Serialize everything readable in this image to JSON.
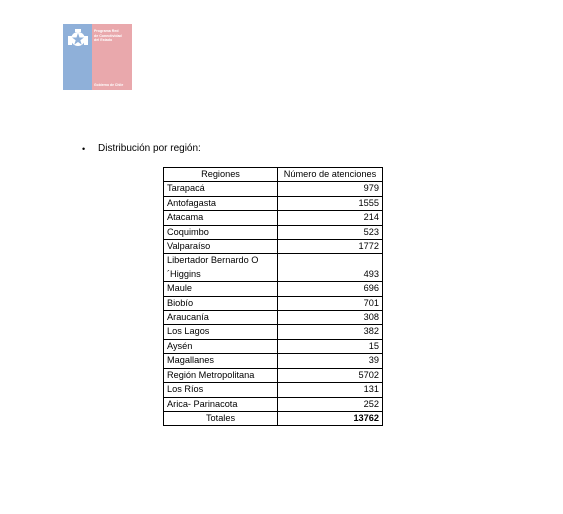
{
  "logo": {
    "lines": [
      "Programa Red",
      "de Conectividad",
      "del Estado"
    ],
    "footer": "Gobierno de Chile",
    "colors": {
      "left": "#8fb0d9",
      "right": "#e9a8ac"
    }
  },
  "section": {
    "bullet": "•",
    "heading": "Distribución por región:"
  },
  "table": {
    "headers": [
      "Regiones",
      "Número de atenciones"
    ],
    "rows": [
      {
        "region": "Tarapacá",
        "count": "979"
      },
      {
        "region": "Antofagasta",
        "count": "1555"
      },
      {
        "region": "Atacama",
        "count": "214"
      },
      {
        "region": "Coquimbo",
        "count": "523"
      },
      {
        "region": "Valparaíso",
        "count": "1772"
      },
      {
        "region": "Libertador Bernardo O´Higgins",
        "count": "493"
      },
      {
        "region": "Maule",
        "count": "696"
      },
      {
        "region": "Biobío",
        "count": "701"
      },
      {
        "region": "Araucanía",
        "count": "308"
      },
      {
        "region": "Los Lagos",
        "count": "382"
      },
      {
        "region": "Aysén",
        "count": "15"
      },
      {
        "region": "Magallanes",
        "count": "39"
      },
      {
        "region": "Región Metropolitana",
        "count": "5702"
      },
      {
        "region": "Los Ríos",
        "count": "131"
      },
      {
        "region": "Arica- Parinacota",
        "count": "252"
      }
    ],
    "total_label": "Totales",
    "total_value": "13762"
  }
}
